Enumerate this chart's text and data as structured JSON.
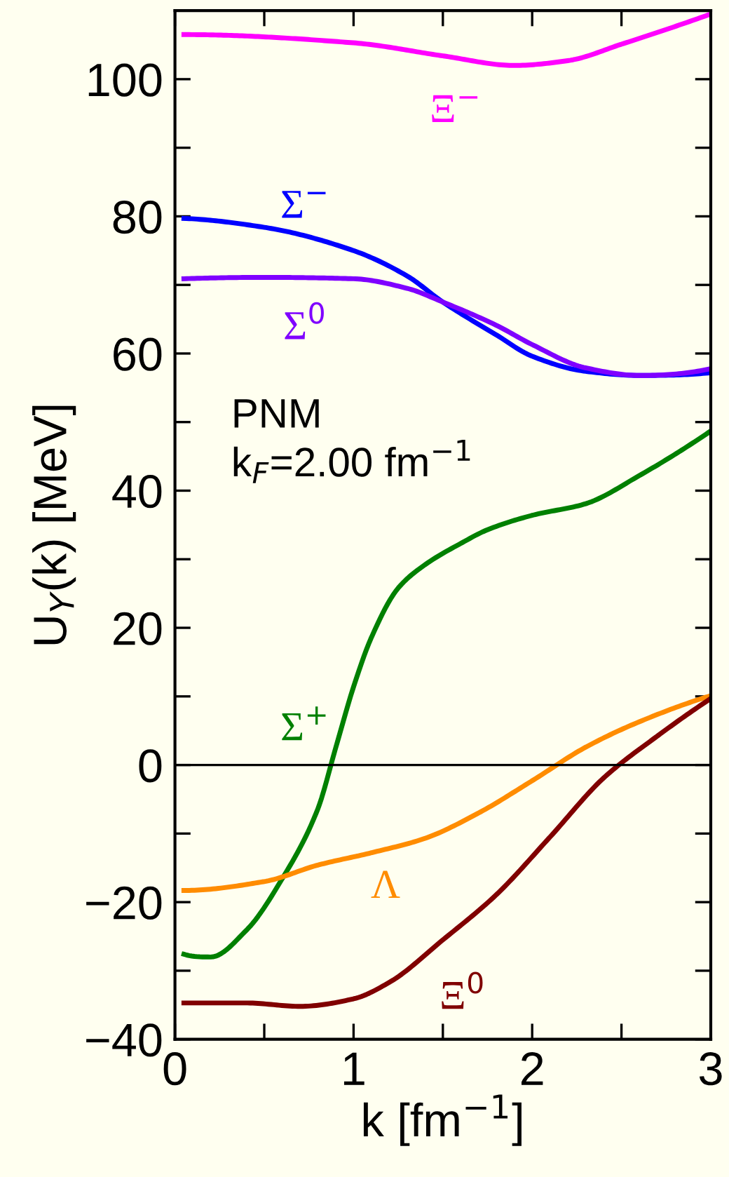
{
  "chart_data": {
    "type": "line",
    "xlabel": "k [fm$^{−1}$]",
    "ylabel": "U$_{Y}$(k) [MeV]",
    "xlim": [
      0,
      3
    ],
    "ylim": [
      -40,
      110
    ],
    "xticks": [
      0,
      {
        "value": 0.5,
        "label": null
      },
      1,
      {
        "value": 1.5,
        "label": null
      },
      2,
      {
        "value": 2.5,
        "label": null
      },
      3
    ],
    "yticks": [
      {
        "value": -40,
        "label": "−40"
      },
      {
        "value": -30,
        "label": null
      },
      {
        "value": -20,
        "label": "−20"
      },
      {
        "value": -10,
        "label": null
      },
      0,
      {
        "value": 10,
        "label": null
      },
      20,
      {
        "value": 30,
        "label": null
      },
      40,
      {
        "value": 50,
        "label": null
      },
      60,
      {
        "value": 70,
        "label": null
      },
      80,
      {
        "value": 90,
        "label": null
      },
      100
    ],
    "grid": false,
    "legend": false,
    "marker": "none",
    "line_style": "solid",
    "ref_lines": [
      {
        "axis": "y",
        "value": 0,
        "color": "#000000"
      }
    ],
    "annotations": [
      "PNM",
      "k$_{F}$=2.00 fm$^{−1}$"
    ],
    "series": [
      {
        "name": "Ξ$^{−}$",
        "color": "#ff00ff",
        "x": [
          0.05,
          1,
          1.5,
          1.9,
          2.2,
          2.5,
          3
        ],
        "values": [
          106.5,
          105.3,
          103.4,
          102.0,
          102.7,
          105.1,
          109.5
        ]
      },
      {
        "name": "Σ$^{−}$",
        "color": "#0000ff",
        "x": [
          0.05,
          0.5,
          1,
          1.3,
          1.5,
          1.8,
          2,
          2.3,
          2.6,
          3
        ],
        "values": [
          79.7,
          78.4,
          75.0,
          71.3,
          67.5,
          62.7,
          59.6,
          57.4,
          56.8,
          57.2
        ]
      },
      {
        "name": "Σ$^{0}$",
        "color": "#7f00ff",
        "x": [
          0.05,
          0.5,
          1,
          1.3,
          1.5,
          1.8,
          2,
          2.3,
          2.6,
          3
        ],
        "values": [
          70.9,
          71.1,
          70.9,
          69.5,
          67.5,
          64.1,
          61.3,
          57.9,
          56.8,
          57.8
        ]
      },
      {
        "name": "Σ$^{+}$",
        "color": "#008000",
        "x": [
          0.05,
          0.2,
          0.4,
          0.6,
          0.8,
          0.9,
          1.0,
          1.1,
          1.25,
          1.4,
          1.6,
          1.75,
          2,
          2.3,
          2.6,
          3
        ],
        "values": [
          -27.6,
          -28.0,
          -24.1,
          -16.6,
          -6.4,
          2.5,
          11.4,
          18.6,
          25.8,
          29.2,
          32.3,
          34.3,
          36.4,
          38.1,
          42.2,
          48.7
        ]
      },
      {
        "name": "Λ",
        "color": "#ff8c00",
        "x": [
          0.05,
          0.5,
          0.8,
          1.1,
          1.4,
          1.7,
          2,
          2.3,
          2.6,
          3
        ],
        "values": [
          -18.3,
          -17.0,
          -14.6,
          -12.8,
          -10.7,
          -7.0,
          -2.3,
          2.6,
          6.3,
          10.1
        ]
      },
      {
        "name": "Ξ$^{0}$",
        "color": "#800000",
        "x": [
          0.05,
          0.4,
          0.7,
          1.0,
          1.2,
          1.5,
          1.8,
          2.1,
          2.4,
          2.7,
          3
        ],
        "values": [
          -34.7,
          -34.7,
          -35.2,
          -34.1,
          -31.7,
          -25.5,
          -18.9,
          -10.5,
          -1.9,
          4.2,
          9.7
        ]
      }
    ]
  }
}
